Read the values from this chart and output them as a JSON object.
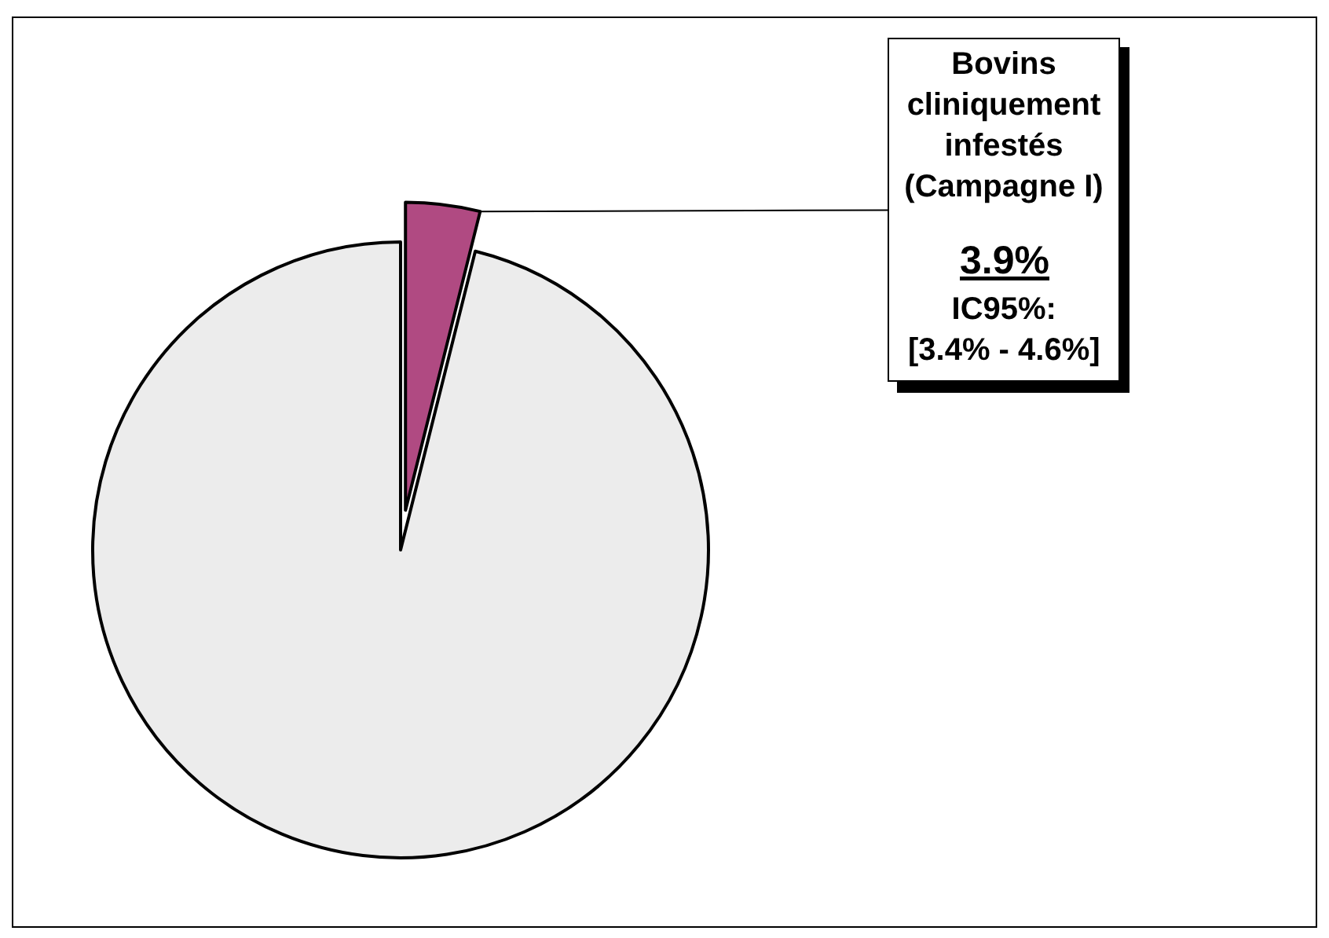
{
  "chart_data": {
    "type": "pie",
    "categories": [
      "Bovins cliniquement infestés (Campagne I)",
      null
    ],
    "values": [
      3.9,
      96.1
    ],
    "colors": [
      "#b04a82",
      "#ececec"
    ],
    "value_labels": [
      "3.9%",
      null
    ],
    "annotations": [
      "IC95%: [3.4% - 4.6%]"
    ]
  }
}
